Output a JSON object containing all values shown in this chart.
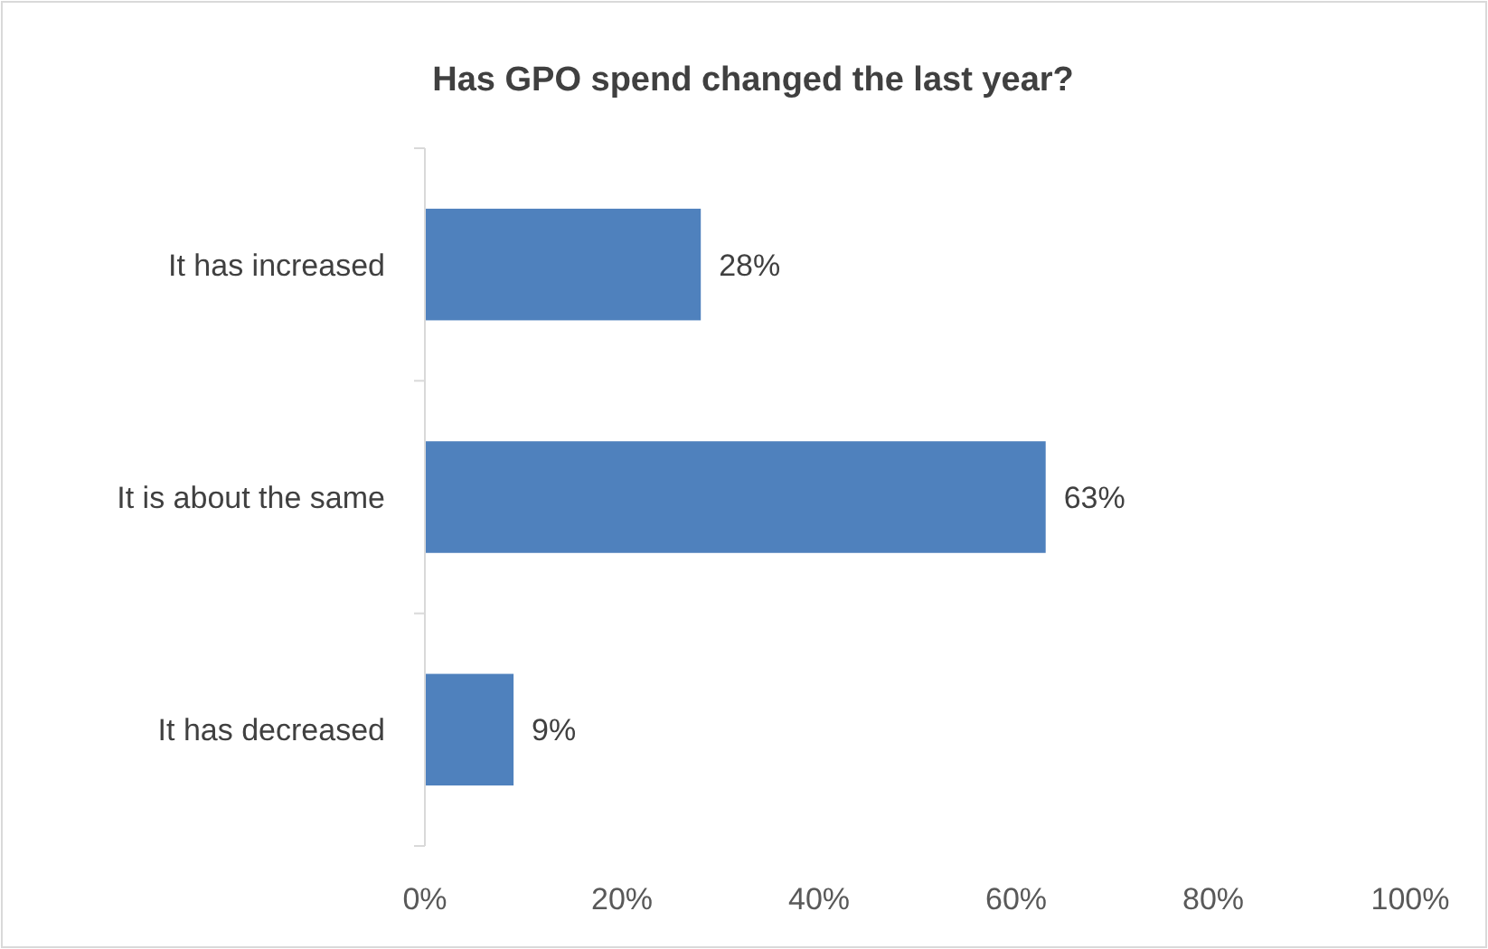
{
  "chart_data": {
    "type": "bar",
    "orientation": "horizontal",
    "title": "Has GPO spend changed the last year?",
    "categories": [
      "It has increased",
      "It is about the same",
      "It has decreased"
    ],
    "values": [
      28,
      63,
      9
    ],
    "color": "#4f81bd",
    "value_labels": [
      "28%",
      "63%",
      "9%"
    ],
    "xlim": [
      0,
      100
    ],
    "xticks": [
      {
        "value": 0,
        "label": "0%"
      },
      {
        "value": 20,
        "label": "20%"
      },
      {
        "value": 40,
        "label": "40%"
      },
      {
        "value": 60,
        "label": "60%"
      },
      {
        "value": 80,
        "label": "80%"
      },
      {
        "value": 100,
        "label": "100%"
      }
    ],
    "grid": false
  }
}
